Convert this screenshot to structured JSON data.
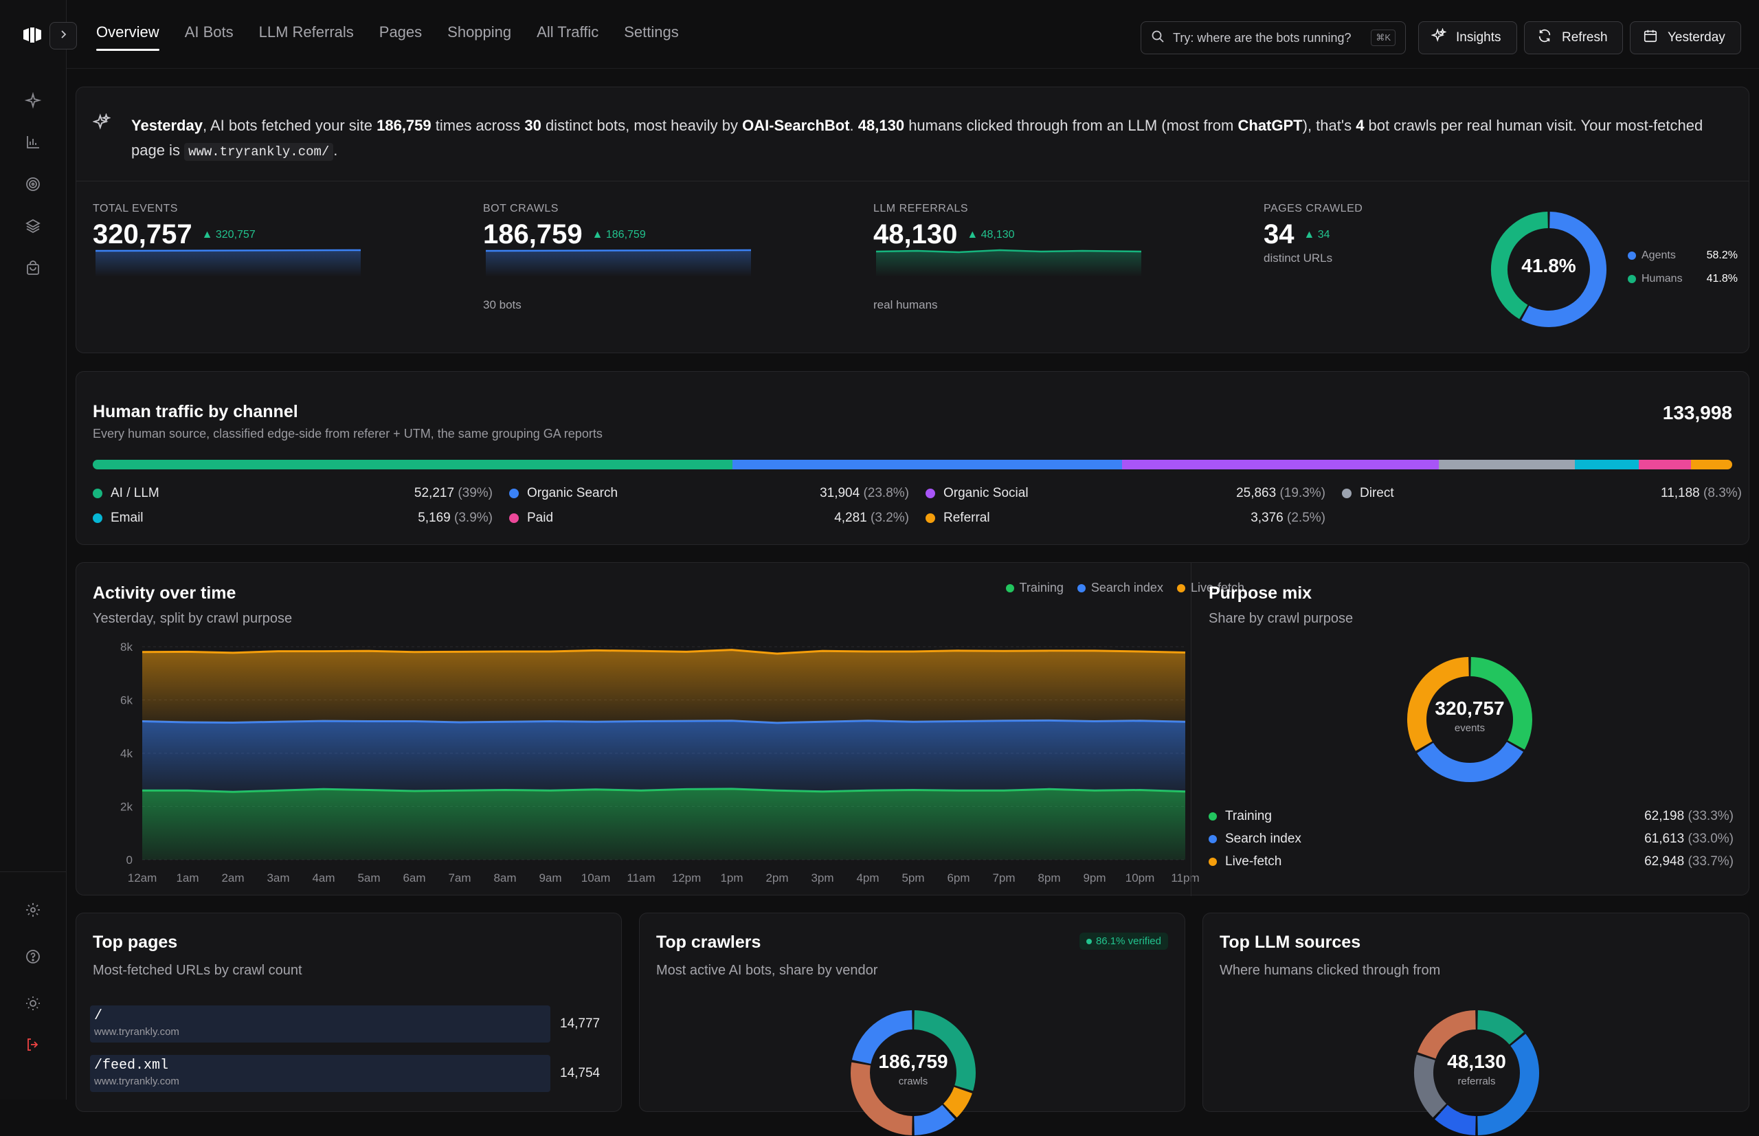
{
  "nav": {
    "tabs": [
      {
        "label": "Overview",
        "active": true
      },
      {
        "label": "AI Bots"
      },
      {
        "label": "LLM Referrals"
      },
      {
        "label": "Pages"
      },
      {
        "label": "Shopping"
      },
      {
        "label": "All Traffic"
      },
      {
        "label": "Settings"
      }
    ],
    "search_placeholder": "Try: where are the bots running?",
    "search_shortcut": "⌘K",
    "insights_label": "Insights",
    "refresh_label": "Refresh",
    "date_label": "Yesterday"
  },
  "sidebar": {
    "top_icons": [
      "sparkles-icon",
      "bar-chart-icon",
      "target-icon",
      "layers-icon",
      "shopping-bag-icon"
    ],
    "bottom_icons": [
      "settings-icon",
      "help-icon",
      "theme-icon",
      "logout-icon"
    ]
  },
  "summary": {
    "period": "Yesterday",
    "t1": ", AI bots fetched your site ",
    "fetches": "186,759",
    "t2": " times across ",
    "bots": "30",
    "t3": " distinct bots, most heavily by ",
    "top_bot": "OAI-SearchBot",
    "t4": ". ",
    "humans": "48,130",
    "t5": " humans clicked through from an LLM (most from ",
    "top_llm": "ChatGPT",
    "t6": "), that's ",
    "ratio": "4",
    "t7": " bot crawls per real human visit. Your most-fetched page is ",
    "top_page": "www.tryrankly.com/",
    "t8": "."
  },
  "stats": [
    {
      "label": "TOTAL EVENTS",
      "value": "320,757",
      "delta": "320,757",
      "sub": "",
      "color": "#3b82f6"
    },
    {
      "label": "BOT CRAWLS",
      "value": "186,759",
      "delta": "186,759",
      "sub": "30 bots",
      "color": "#3b82f6"
    },
    {
      "label": "LLM REFERRALS",
      "value": "48,130",
      "delta": "48,130",
      "sub": "real humans",
      "color": "#16b57e"
    },
    {
      "label": "PAGES CRAWLED",
      "value": "34",
      "delta": "34",
      "sub": "distinct URLs"
    }
  ],
  "agents_donut": {
    "center": "41.8%",
    "items": [
      {
        "label": "Agents",
        "value": "58.2%",
        "pct": 58.2,
        "color": "#3b82f6"
      },
      {
        "label": "Humans",
        "value": "41.8%",
        "pct": 41.8,
        "color": "#16b57e"
      }
    ]
  },
  "channels": {
    "title": "Human traffic by channel",
    "subtitle": "Every human source, classified edge-side from referer + UTM, the same grouping GA reports",
    "total": "133,998",
    "items": [
      {
        "name": "AI / LLM",
        "value": "52,217",
        "pct_label": "(39%)",
        "pct": 39,
        "color": "#16b57e"
      },
      {
        "name": "Organic Search",
        "value": "31,904",
        "pct_label": "(23.8%)",
        "pct": 23.8,
        "color": "#3b82f6"
      },
      {
        "name": "Organic Social",
        "value": "25,863",
        "pct_label": "(19.3%)",
        "pct": 19.3,
        "color": "#a855f7"
      },
      {
        "name": "Direct",
        "value": "11,188",
        "pct_label": "(8.3%)",
        "pct": 8.3,
        "color": "#9ca3af"
      },
      {
        "name": "Email",
        "value": "5,169",
        "pct_label": "(3.9%)",
        "pct": 3.9,
        "color": "#06b6d4"
      },
      {
        "name": "Paid",
        "value": "4,281",
        "pct_label": "(3.2%)",
        "pct": 3.2,
        "color": "#ec4899"
      },
      {
        "name": "Referral",
        "value": "3,376",
        "pct_label": "(2.5%)",
        "pct": 2.5,
        "color": "#f59e0b"
      }
    ]
  },
  "activity": {
    "title": "Activity over time",
    "subtitle": "Yesterday, split by crawl purpose",
    "legend": [
      {
        "name": "Training",
        "color": "#22c55e"
      },
      {
        "name": "Search index",
        "color": "#3b82f6"
      },
      {
        "name": "Live-fetch",
        "color": "#f59e0b"
      }
    ]
  },
  "chart_data": {
    "type": "area",
    "stacked": true,
    "x": [
      "12am",
      "1am",
      "2am",
      "3am",
      "4am",
      "5am",
      "6am",
      "7am",
      "8am",
      "9am",
      "10am",
      "11am",
      "12pm",
      "1pm",
      "2pm",
      "3pm",
      "4pm",
      "5pm",
      "6pm",
      "7pm",
      "8pm",
      "9pm",
      "10pm",
      "11pm"
    ],
    "y_ticks": [
      "0",
      "2k",
      "4k",
      "6k",
      "8k"
    ],
    "ylim": [
      0,
      8000
    ],
    "series": [
      {
        "name": "Training",
        "color": "#22c55e",
        "values": [
          2600,
          2600,
          2550,
          2600,
          2650,
          2620,
          2580,
          2600,
          2620,
          2600,
          2640,
          2600,
          2650,
          2660,
          2600,
          2560,
          2600,
          2620,
          2600,
          2600,
          2650,
          2600,
          2620,
          2560
        ]
      },
      {
        "name": "Search index",
        "color": "#3b82f6",
        "values": [
          2600,
          2560,
          2600,
          2580,
          2560,
          2580,
          2620,
          2560,
          2560,
          2600,
          2540,
          2600,
          2560,
          2560,
          2540,
          2620,
          2620,
          2560,
          2600,
          2620,
          2580,
          2600,
          2600,
          2620
        ]
      },
      {
        "name": "Live-fetch",
        "color": "#f59e0b",
        "values": [
          2600,
          2650,
          2620,
          2650,
          2620,
          2640,
          2600,
          2650,
          2640,
          2620,
          2680,
          2640,
          2600,
          2660,
          2600,
          2660,
          2600,
          2640,
          2650,
          2620,
          2620,
          2650,
          2600,
          2600
        ]
      }
    ]
  },
  "purpose": {
    "title": "Purpose mix",
    "subtitle": "Share by crawl purpose",
    "center_value": "320,757",
    "center_label": "events",
    "items": [
      {
        "name": "Training",
        "value": "62,198",
        "pct_label": "(33.3%)",
        "pct": 33.3,
        "color": "#22c55e"
      },
      {
        "name": "Search index",
        "value": "61,613",
        "pct_label": "(33.0%)",
        "pct": 33.0,
        "color": "#3b82f6"
      },
      {
        "name": "Live-fetch",
        "value": "62,948",
        "pct_label": "(33.7%)",
        "pct": 33.7,
        "color": "#f59e0b"
      }
    ]
  },
  "top_pages": {
    "title": "Top pages",
    "subtitle": "Most-fetched URLs by crawl count",
    "rows": [
      {
        "path": "/",
        "host": "www.tryrankly.com",
        "count": "14,777"
      },
      {
        "path": "/feed.xml",
        "host": "www.tryrankly.com",
        "count": "14,754"
      }
    ]
  },
  "top_crawlers": {
    "title": "Top crawlers",
    "subtitle": "Most active AI bots, share by vendor",
    "badge": "86.1% verified",
    "center_value": "186,759",
    "center_label": "crawls",
    "segments": [
      {
        "pct": 30,
        "color": "#16a37e"
      },
      {
        "pct": 8,
        "color": "#f59e0b"
      },
      {
        "pct": 12,
        "color": "#3b82f6"
      },
      {
        "pct": 28,
        "color": "#c8704f"
      },
      {
        "pct": 22,
        "color": "#3b82f6"
      }
    ]
  },
  "top_llm": {
    "title": "Top LLM sources",
    "subtitle": "Where humans clicked through from",
    "center_value": "48,130",
    "center_label": "referrals",
    "segments": [
      {
        "pct": 14,
        "color": "#16a37e"
      },
      {
        "pct": 36,
        "color": "#1f7ae0"
      },
      {
        "pct": 12,
        "color": "#2563eb"
      },
      {
        "pct": 18,
        "color": "#6b7280"
      },
      {
        "pct": 20,
        "color": "#c8704f"
      }
    ]
  }
}
